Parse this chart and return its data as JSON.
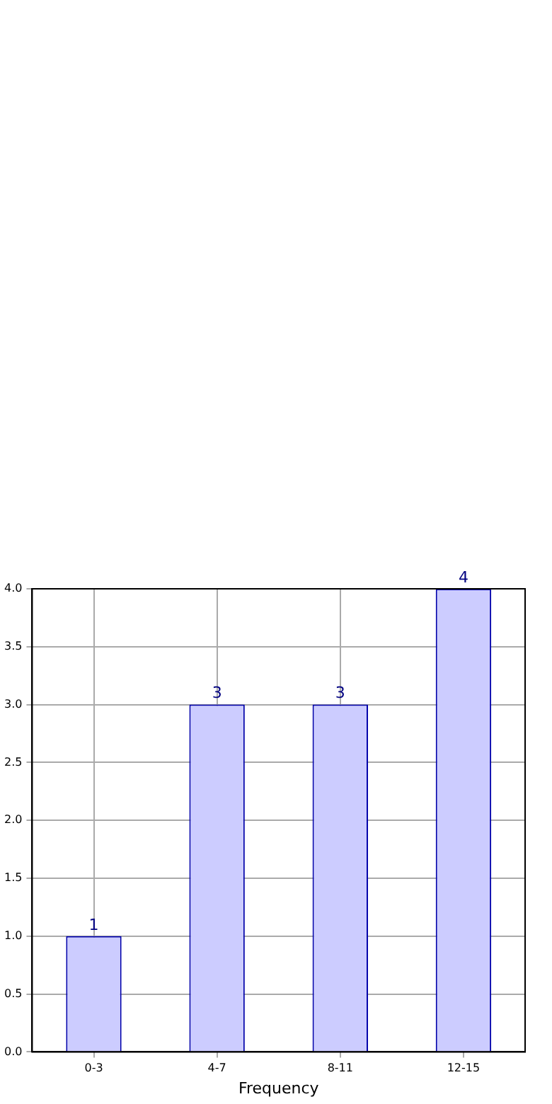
{
  "chart_data": {
    "type": "bar",
    "xlabel": "Frequency",
    "categories": [
      "0-3",
      "4-7",
      "8-11",
      "12-15"
    ],
    "values": [
      1,
      3,
      3,
      4
    ],
    "color": "#ccccff",
    "ylim": [
      0,
      4
    ],
    "yticks": [
      {
        "value": 0,
        "label": "0.0"
      },
      {
        "value": 0.5,
        "label": "0.5"
      },
      {
        "value": 1,
        "label": "1.0"
      },
      {
        "value": 1.5,
        "label": "1.5"
      },
      {
        "value": 2,
        "label": "2.0"
      },
      {
        "value": 2.5,
        "label": "2.5"
      },
      {
        "value": 3,
        "label": "3.0"
      },
      {
        "value": 3.5,
        "label": "3.5"
      },
      {
        "value": 4,
        "label": "4.0"
      }
    ],
    "grid": true,
    "data_labels": true
  }
}
